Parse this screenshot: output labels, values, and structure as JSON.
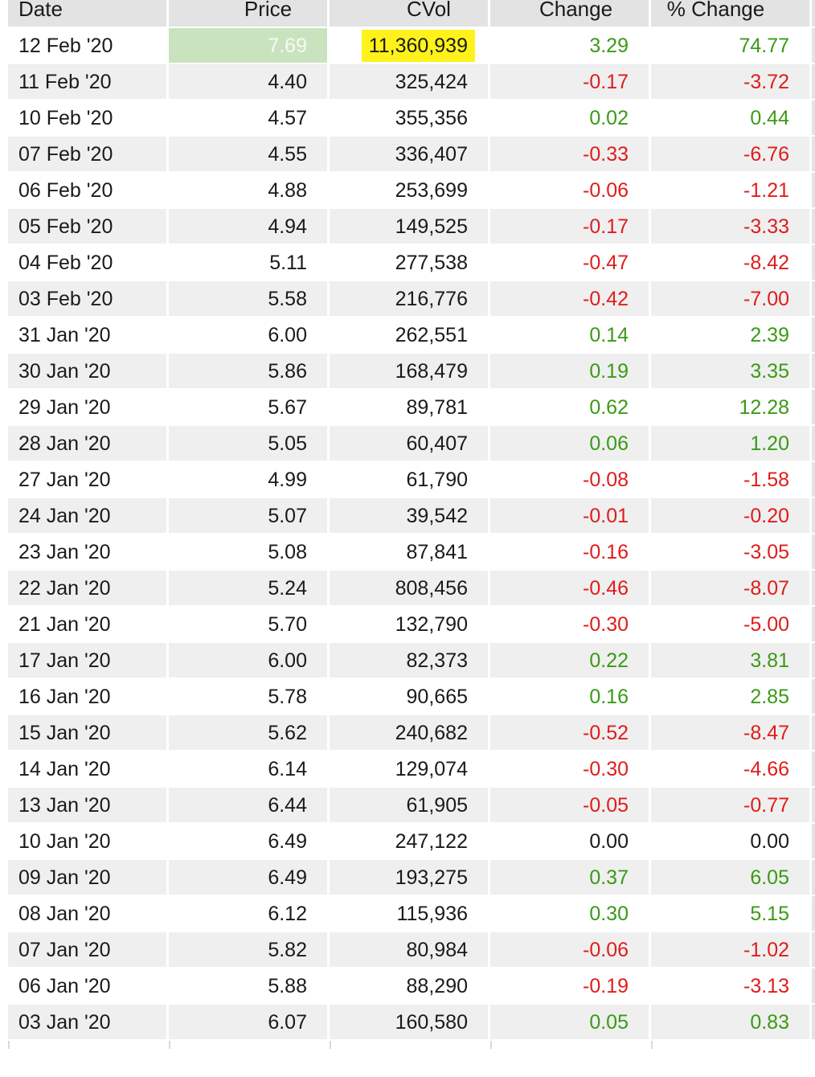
{
  "columns": [
    "Date",
    "Price",
    "CVol",
    "Change",
    "% Change"
  ],
  "colors": {
    "positive": "#3a9a16",
    "negative": "#e01c1c",
    "highlight_price": "#c9e3bf",
    "highlight_volume": "#fff21a"
  },
  "rows": [
    {
      "date": "12 Feb '20",
      "price": "7.69",
      "cvol": "11,360,939",
      "change": "3.29",
      "pct": "74.77",
      "dir": "pos"
    },
    {
      "date": "11 Feb '20",
      "price": "4.40",
      "cvol": "325,424",
      "change": "-0.17",
      "pct": "-3.72",
      "dir": "neg"
    },
    {
      "date": "10 Feb '20",
      "price": "4.57",
      "cvol": "355,356",
      "change": "0.02",
      "pct": "0.44",
      "dir": "pos"
    },
    {
      "date": "07 Feb '20",
      "price": "4.55",
      "cvol": "336,407",
      "change": "-0.33",
      "pct": "-6.76",
      "dir": "neg"
    },
    {
      "date": "06 Feb '20",
      "price": "4.88",
      "cvol": "253,699",
      "change": "-0.06",
      "pct": "-1.21",
      "dir": "neg"
    },
    {
      "date": "05 Feb '20",
      "price": "4.94",
      "cvol": "149,525",
      "change": "-0.17",
      "pct": "-3.33",
      "dir": "neg"
    },
    {
      "date": "04 Feb '20",
      "price": "5.11",
      "cvol": "277,538",
      "change": "-0.47",
      "pct": "-8.42",
      "dir": "neg"
    },
    {
      "date": "03 Feb '20",
      "price": "5.58",
      "cvol": "216,776",
      "change": "-0.42",
      "pct": "-7.00",
      "dir": "neg"
    },
    {
      "date": "31 Jan '20",
      "price": "6.00",
      "cvol": "262,551",
      "change": "0.14",
      "pct": "2.39",
      "dir": "pos"
    },
    {
      "date": "30 Jan '20",
      "price": "5.86",
      "cvol": "168,479",
      "change": "0.19",
      "pct": "3.35",
      "dir": "pos"
    },
    {
      "date": "29 Jan '20",
      "price": "5.67",
      "cvol": "89,781",
      "change": "0.62",
      "pct": "12.28",
      "dir": "pos"
    },
    {
      "date": "28 Jan '20",
      "price": "5.05",
      "cvol": "60,407",
      "change": "0.06",
      "pct": "1.20",
      "dir": "pos"
    },
    {
      "date": "27 Jan '20",
      "price": "4.99",
      "cvol": "61,790",
      "change": "-0.08",
      "pct": "-1.58",
      "dir": "neg"
    },
    {
      "date": "24 Jan '20",
      "price": "5.07",
      "cvol": "39,542",
      "change": "-0.01",
      "pct": "-0.20",
      "dir": "neg"
    },
    {
      "date": "23 Jan '20",
      "price": "5.08",
      "cvol": "87,841",
      "change": "-0.16",
      "pct": "-3.05",
      "dir": "neg"
    },
    {
      "date": "22 Jan '20",
      "price": "5.24",
      "cvol": "808,456",
      "change": "-0.46",
      "pct": "-8.07",
      "dir": "neg"
    },
    {
      "date": "21 Jan '20",
      "price": "5.70",
      "cvol": "132,790",
      "change": "-0.30",
      "pct": "-5.00",
      "dir": "neg"
    },
    {
      "date": "17 Jan '20",
      "price": "6.00",
      "cvol": "82,373",
      "change": "0.22",
      "pct": "3.81",
      "dir": "pos"
    },
    {
      "date": "16 Jan '20",
      "price": "5.78",
      "cvol": "90,665",
      "change": "0.16",
      "pct": "2.85",
      "dir": "pos"
    },
    {
      "date": "15 Jan '20",
      "price": "5.62",
      "cvol": "240,682",
      "change": "-0.52",
      "pct": "-8.47",
      "dir": "neg"
    },
    {
      "date": "14 Jan '20",
      "price": "6.14",
      "cvol": "129,074",
      "change": "-0.30",
      "pct": "-4.66",
      "dir": "neg"
    },
    {
      "date": "13 Jan '20",
      "price": "6.44",
      "cvol": "61,905",
      "change": "-0.05",
      "pct": "-0.77",
      "dir": "neg"
    },
    {
      "date": "10 Jan '20",
      "price": "6.49",
      "cvol": "247,122",
      "change": "0.00",
      "pct": "0.00",
      "dir": "zero"
    },
    {
      "date": "09 Jan '20",
      "price": "6.49",
      "cvol": "193,275",
      "change": "0.37",
      "pct": "6.05",
      "dir": "pos"
    },
    {
      "date": "08 Jan '20",
      "price": "6.12",
      "cvol": "115,936",
      "change": "0.30",
      "pct": "5.15",
      "dir": "pos"
    },
    {
      "date": "07 Jan '20",
      "price": "5.82",
      "cvol": "80,984",
      "change": "-0.06",
      "pct": "-1.02",
      "dir": "neg"
    },
    {
      "date": "06 Jan '20",
      "price": "5.88",
      "cvol": "88,290",
      "change": "-0.19",
      "pct": "-3.13",
      "dir": "neg"
    },
    {
      "date": "03 Jan '20",
      "price": "6.07",
      "cvol": "160,580",
      "change": "0.05",
      "pct": "0.83",
      "dir": "pos"
    }
  ]
}
